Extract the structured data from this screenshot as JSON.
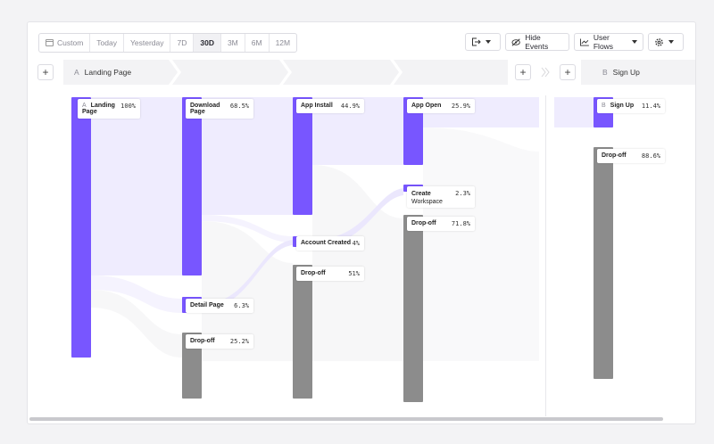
{
  "toolbar": {
    "ranges": [
      "Custom",
      "Today",
      "Yesterday",
      "7D",
      "30D",
      "3M",
      "6M",
      "12M"
    ],
    "active_range": "30D",
    "hide_events": "Hide Events",
    "user_flows": "User Flows"
  },
  "steps": {
    "step_a": {
      "letter": "A",
      "name": "Landing Page"
    },
    "step_b": {
      "letter": "B",
      "name": "Sign Up"
    }
  },
  "nodes": {
    "landing": {
      "letter": "A",
      "name": "Landing Page",
      "pct": "100%"
    },
    "download": {
      "name": "Download Page",
      "pct": "68.5%"
    },
    "detail": {
      "name": "Detail Page",
      "pct": "6.3%"
    },
    "drop1": {
      "name": "Drop-off",
      "pct": "25.2%"
    },
    "install": {
      "name": "App Install",
      "pct": "44.9%"
    },
    "account": {
      "name": "Account Created",
      "pct": "4%"
    },
    "drop2": {
      "name": "Drop-off",
      "pct": "51%"
    },
    "open": {
      "name": "App Open",
      "pct": "25.9%"
    },
    "workspace": {
      "name": "Create",
      "name2": "Workspace",
      "pct": "2.3%"
    },
    "drop3": {
      "name": "Drop-off",
      "pct": "71.8%"
    },
    "signup": {
      "letter": "B",
      "name": "Sign Up",
      "pct": "11.4%"
    },
    "drop4": {
      "name": "Drop-off",
      "pct": "88.6%"
    }
  },
  "colors": {
    "accent": "#7856ff",
    "dropoff": "#8c8c8c",
    "flow": "#ebe7fd"
  }
}
